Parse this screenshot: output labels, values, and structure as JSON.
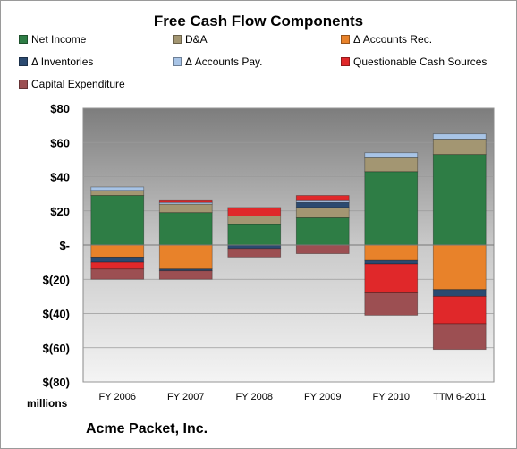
{
  "chart_data": {
    "type": "bar",
    "stacked": true,
    "title": "Free Cash Flow Components",
    "unit_label": "millions",
    "footer": "Acme Packet, Inc.",
    "categories": [
      "FY 2006",
      "FY 2007",
      "FY 2008",
      "FY 2009",
      "FY 2010",
      "TTM 6-2011"
    ],
    "ylim": [
      -80,
      80
    ],
    "yticks": [
      {
        "value": 80,
        "label": "$80"
      },
      {
        "value": 60,
        "label": "$60"
      },
      {
        "value": 40,
        "label": "$40"
      },
      {
        "value": 20,
        "label": "$20"
      },
      {
        "value": 0,
        "label": "$-"
      },
      {
        "value": -20,
        "label": "$(20)"
      },
      {
        "value": -40,
        "label": "$(40)"
      },
      {
        "value": -60,
        "label": "$(60)"
      },
      {
        "value": -80,
        "label": "$(80)"
      }
    ],
    "grid": true,
    "legend_position": "top",
    "series": [
      {
        "name": "Net Income",
        "color": "#2e7d45",
        "values": [
          29,
          19,
          12,
          16,
          43,
          53
        ]
      },
      {
        "name": "D&A",
        "color": "#a39672",
        "values": [
          3,
          5,
          5,
          6,
          8,
          9
        ]
      },
      {
        "name": "Δ Accounts Rec.",
        "color": "#e8822a",
        "values": [
          -7,
          -14,
          0,
          0,
          -9,
          -26
        ]
      },
      {
        "name": "Δ Inventories",
        "color": "#2b4a70",
        "values": [
          -3,
          -1,
          -2,
          3,
          -2,
          -4
        ]
      },
      {
        "name": "Δ Accounts Pay.",
        "color": "#a8c4e6",
        "values": [
          2,
          1,
          0,
          1,
          3,
          3
        ]
      },
      {
        "name": "Questionable Cash Sources",
        "color": "#e0282a",
        "values": [
          -4,
          1,
          5,
          3,
          -17,
          -16
        ]
      },
      {
        "name": "Capital Expenditure",
        "color": "#9c4f52",
        "values": [
          -6,
          -5,
          -5,
          -5,
          -13,
          -15
        ]
      }
    ]
  }
}
